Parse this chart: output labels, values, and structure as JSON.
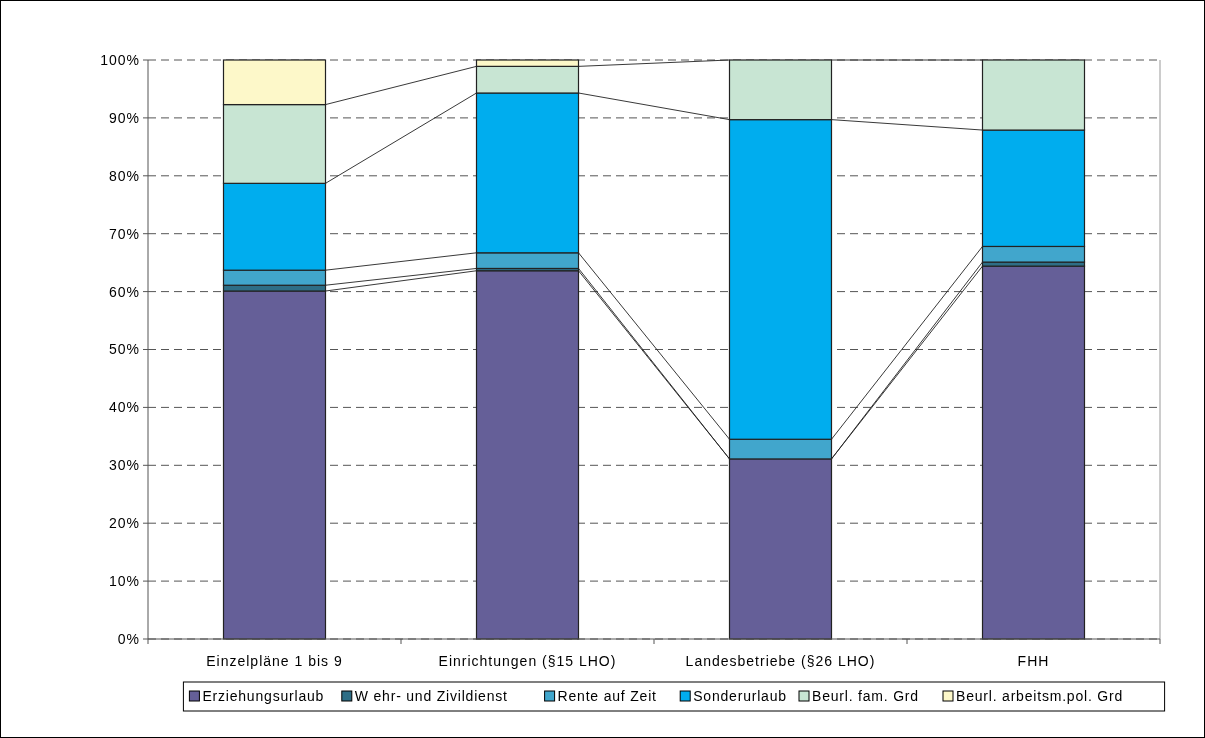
{
  "chart_data": {
    "type": "bar",
    "stacked": true,
    "categories": [
      "Einzelpläne 1 bis 9",
      "Einrichtungen (§15 LHO)",
      "Landesbetriebe (§26 LHO)",
      "FHH"
    ],
    "series": [
      {
        "name": "Erziehungsurlaub",
        "color": "#655f98",
        "values": [
          60.1,
          63.6,
          31.1,
          64.4
        ]
      },
      {
        "name": "W ehr- und Zivildienst",
        "color": "#2e6e86",
        "values": [
          1.0,
          0.4,
          0,
          0.7
        ]
      },
      {
        "name": "Rente auf Zeit",
        "color": "#41a6cc",
        "values": [
          2.6,
          2.7,
          3.4,
          2.7
        ]
      },
      {
        "name": "Sonderurlaub",
        "color": "#00adee",
        "values": [
          15.0,
          27.6,
          55.2,
          20.1
        ]
      },
      {
        "name": "Beurl. fam. Grd",
        "color": "#c8e5d3",
        "values": [
          13.6,
          4.6,
          10.3,
          12.1
        ]
      },
      {
        "name": "Beurl. arbeitsm.pol. Grd",
        "color": "#fdf8c9",
        "values": [
          7.7,
          1.1,
          0,
          0
        ]
      }
    ],
    "ylim": [
      0,
      100
    ],
    "yticks": [
      {
        "value": 0,
        "label": "0%"
      },
      {
        "value": 10,
        "label": "10%"
      },
      {
        "value": 20,
        "label": "20%"
      },
      {
        "value": 30,
        "label": "30%"
      },
      {
        "value": 40,
        "label": "40%"
      },
      {
        "value": 50,
        "label": "50%"
      },
      {
        "value": 60,
        "label": "60%"
      },
      {
        "value": 70,
        "label": "70%"
      },
      {
        "value": 80,
        "label": "80%"
      },
      {
        "value": 90,
        "label": "90%"
      },
      {
        "value": 100,
        "label": "100%"
      }
    ],
    "grid": "y",
    "legend": "bottom"
  }
}
